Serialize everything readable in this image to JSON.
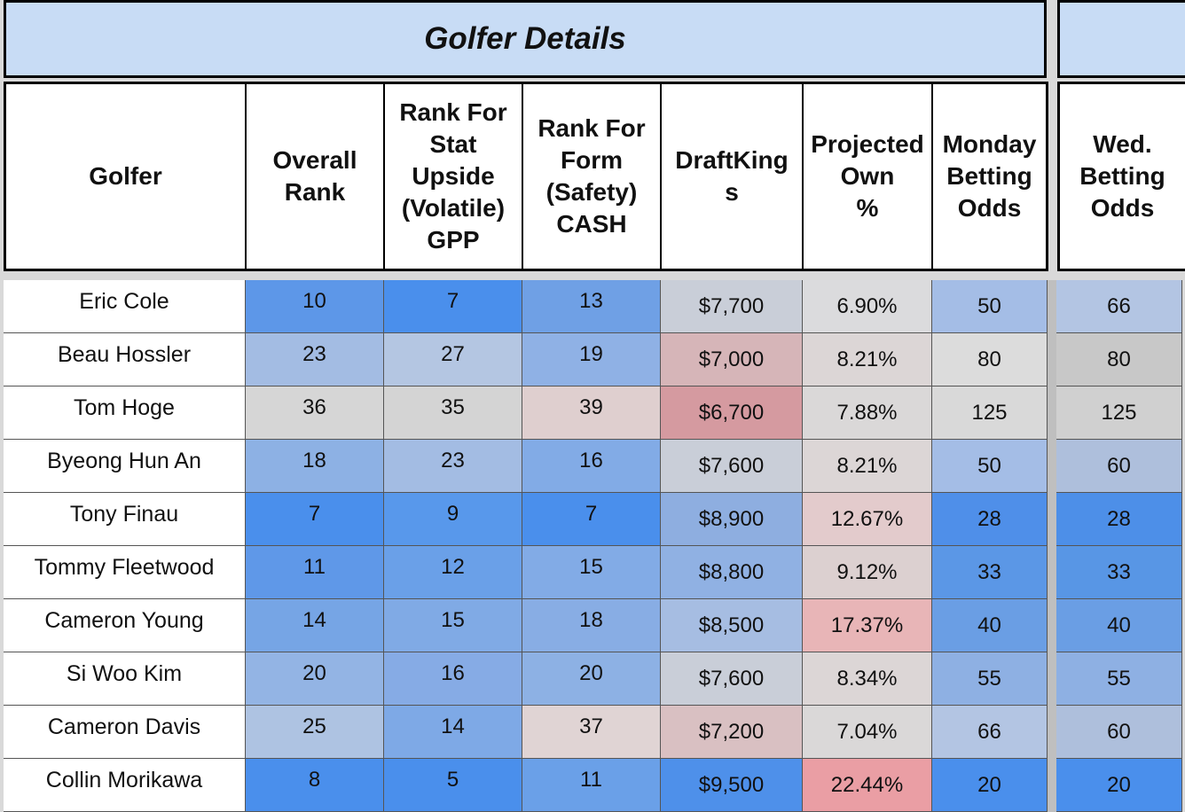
{
  "title": "Golfer Details",
  "headers": [
    "Golfer",
    "Overall\nRank",
    "Rank For\nStat\nUpside\n(Volatile)\nGPP",
    "Rank For\nForm\n(Safety)\nCASH",
    "DraftKing\ns",
    "Projected\nOwn\n%",
    "Monday\nBetting\nOdds"
  ],
  "side_header": "Wed.\nBetting\nOdds",
  "rows": [
    {
      "golfer": "Eric Cole",
      "overall_rank": "10",
      "rank_stat": "7",
      "rank_form": "13",
      "draftkings": "$7,700",
      "own": "6.90%",
      "monday_odds": "50",
      "wed_odds": "66"
    },
    {
      "golfer": "Beau Hossler",
      "overall_rank": "23",
      "rank_stat": "27",
      "rank_form": "19",
      "draftkings": "$7,000",
      "own": "8.21%",
      "monday_odds": "80",
      "wed_odds": "80"
    },
    {
      "golfer": "Tom Hoge",
      "overall_rank": "36",
      "rank_stat": "35",
      "rank_form": "39",
      "draftkings": "$6,700",
      "own": "7.88%",
      "monday_odds": "125",
      "wed_odds": "125"
    },
    {
      "golfer": "Byeong Hun An",
      "overall_rank": "18",
      "rank_stat": "23",
      "rank_form": "16",
      "draftkings": "$7,600",
      "own": "8.21%",
      "monday_odds": "50",
      "wed_odds": "60"
    },
    {
      "golfer": "Tony Finau",
      "overall_rank": "7",
      "rank_stat": "9",
      "rank_form": "7",
      "draftkings": "$8,900",
      "own": "12.67%",
      "monday_odds": "28",
      "wed_odds": "28"
    },
    {
      "golfer": "Tommy Fleetwood",
      "overall_rank": "11",
      "rank_stat": "12",
      "rank_form": "15",
      "draftkings": "$8,800",
      "own": "9.12%",
      "monday_odds": "33",
      "wed_odds": "33"
    },
    {
      "golfer": "Cameron Young",
      "overall_rank": "14",
      "rank_stat": "15",
      "rank_form": "18",
      "draftkings": "$8,500",
      "own": "17.37%",
      "monday_odds": "40",
      "wed_odds": "40"
    },
    {
      "golfer": "Si Woo Kim",
      "overall_rank": "20",
      "rank_stat": "16",
      "rank_form": "20",
      "draftkings": "$7,600",
      "own": "8.34%",
      "monday_odds": "55",
      "wed_odds": "55"
    },
    {
      "golfer": "Cameron Davis",
      "overall_rank": "25",
      "rank_stat": "14",
      "rank_form": "37",
      "draftkings": "$7,200",
      "own": "7.04%",
      "monday_odds": "66",
      "wed_odds": "60"
    },
    {
      "golfer": "Collin Morikawa",
      "overall_rank": "8",
      "rank_stat": "5",
      "rank_form": "11",
      "draftkings": "$9,500",
      "own": "22.44%",
      "monday_odds": "20",
      "wed_odds": "20"
    }
  ],
  "cell_colors": [
    [
      "#5d97e8",
      "#4a8fec",
      "#6fa0e5",
      "#c9ced8",
      "#dbdbdd",
      "#a4bde6",
      "#b3c5e3"
    ],
    [
      "#a3bce3",
      "#b4c6e2",
      "#8fb1e5",
      "#d6b5b8",
      "#dcd6d6",
      "#dcdcdc",
      "#c8c8c8"
    ],
    [
      "#d6d6d6",
      "#d4d4d4",
      "#dfcfcf",
      "#d59aa0",
      "#dad8d8",
      "#d9d9d9",
      "#d0d0d0"
    ],
    [
      "#8db1e4",
      "#a3bce3",
      "#82abe6",
      "#c9ced8",
      "#dcd6d6",
      "#a4bde6",
      "#aebfdc"
    ],
    [
      "#4a8fec",
      "#5898eb",
      "#4a8fec",
      "#8eaee0",
      "#e3cbcc",
      "#4f8fe9",
      "#4d8fe8"
    ],
    [
      "#5f98e8",
      "#6aa0e8",
      "#82abe6",
      "#90b1e3",
      "#dcd0d0",
      "#5b97e6",
      "#5896e5"
    ],
    [
      "#76a5e5",
      "#80aae5",
      "#88ade4",
      "#a6bde2",
      "#e8b5b7",
      "#6a9ee4",
      "#6a9ee4"
    ],
    [
      "#93b4e4",
      "#86abe5",
      "#8db1e4",
      "#c9ced8",
      "#dcd6d6",
      "#8eb0e3",
      "#8eb0e3"
    ],
    [
      "#aec3e2",
      "#7ea9e6",
      "#e0d4d4",
      "#d9c0c2",
      "#dad8d8",
      "#b3c5e3",
      "#aebfdc"
    ],
    [
      "#4a8fec",
      "#4a8fec",
      "#6aa0e8",
      "#4e90ea",
      "#ea9ea4",
      "#4a8fec",
      "#4a8fec"
    ]
  ]
}
